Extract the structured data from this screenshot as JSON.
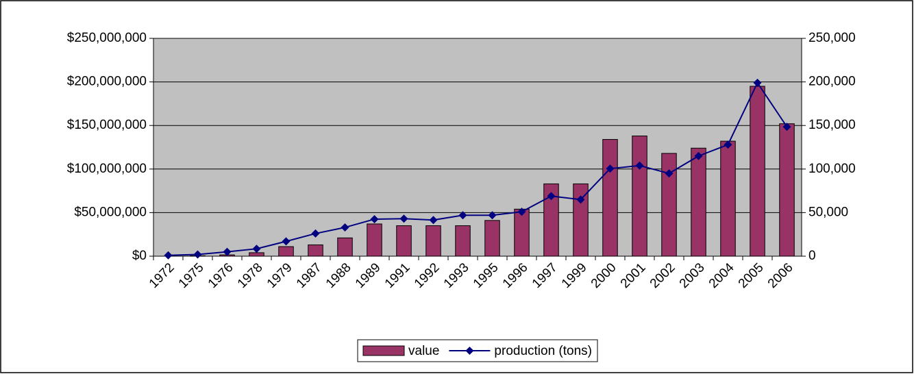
{
  "chart_data": {
    "type": "bar_line",
    "categories": [
      "1972",
      "1975",
      "1976",
      "1978",
      "1979",
      "1987",
      "1988",
      "1989",
      "1991",
      "1992",
      "1993",
      "1995",
      "1996",
      "1997",
      "1999",
      "2000",
      "2001",
      "2002",
      "2003",
      "2004",
      "2005",
      "2006"
    ],
    "series": [
      {
        "name": "value",
        "type": "bar",
        "color": "#993366",
        "values": [
          0,
          500000,
          1500000,
          4000000,
          11000000,
          13000000,
          21000000,
          37000000,
          35000000,
          35000000,
          35000000,
          41000000,
          54000000,
          83000000,
          83000000,
          134000000,
          138000000,
          118000000,
          124000000,
          132000000,
          195000000,
          152000000
        ]
      },
      {
        "name": "production (tons)",
        "type": "line",
        "axis": "y2",
        "color": "#000080",
        "values": [
          1000,
          2000,
          5000,
          8500,
          17000,
          26000,
          33000,
          42500,
          43000,
          41500,
          47000,
          47000,
          51000,
          69000,
          65000,
          100500,
          104000,
          95000,
          115000,
          128000,
          199000,
          148500
        ]
      }
    ],
    "ylim": [
      0,
      250000000
    ],
    "yticks": [
      {
        "value": 0,
        "label": "$0"
      },
      {
        "value": 50000000,
        "label": "$50,000,000"
      },
      {
        "value": 100000000,
        "label": "$100,000,000"
      },
      {
        "value": 150000000,
        "label": "$150,000,000"
      },
      {
        "value": 200000000,
        "label": "$200,000,000"
      },
      {
        "value": 250000000,
        "label": "$250,000,000"
      }
    ],
    "y2lim": [
      0,
      250000
    ],
    "y2ticks": [
      0,
      {
        "value": 50000,
        "label": "50,000"
      },
      {
        "value": 100000,
        "label": "100,000"
      },
      {
        "value": 150000,
        "label": "150,000"
      },
      {
        "value": 200000,
        "label": "200,000"
      },
      {
        "value": 250000,
        "label": "250,000"
      }
    ],
    "grid": true,
    "plot_background": "#c0c0c0",
    "legend": "bottom"
  }
}
